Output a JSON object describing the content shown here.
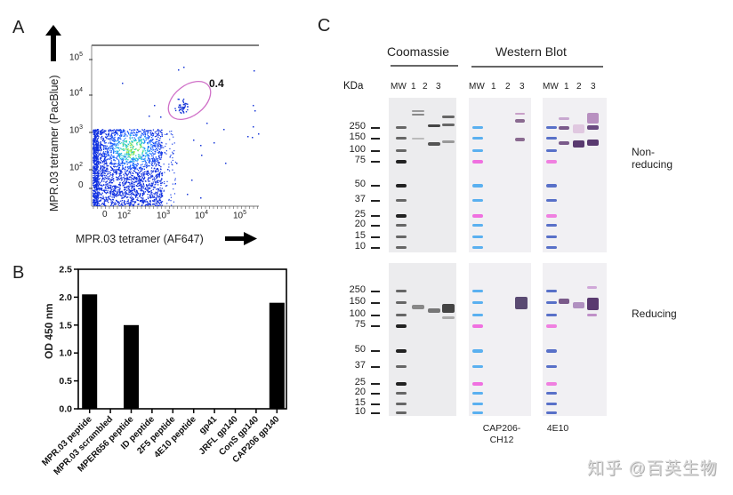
{
  "panels": {
    "a": "A",
    "b": "B",
    "c": "C"
  },
  "chart_data": [
    {
      "type": "scatter",
      "subtype": "flow-cytometry-density",
      "xlabel": "MPR.03 tetramer (AF647)",
      "ylabel": "MPR.03 tetramer (PacBlue)",
      "xscale": "biexponential",
      "yscale": "biexponential",
      "xticks": [
        "0",
        "10^2",
        "10^3",
        "10^4",
        "10^5"
      ],
      "yticks": [
        "0",
        "10^2",
        "10^3",
        "10^4",
        "10^5"
      ],
      "gate": {
        "shape": "ellipse",
        "label": "0.4",
        "color": "#d070c8",
        "x_range_log10": [
          3.2,
          3.9
        ],
        "y_range_log10": [
          3.1,
          3.9
        ]
      },
      "population_center_log10": {
        "x": 2.4,
        "y": 2.6
      }
    },
    {
      "type": "bar",
      "title": "",
      "xlabel": "",
      "ylabel": "OD 450 nm",
      "ylim": [
        0,
        2.5
      ],
      "yticks": [
        "0.0",
        "0.5",
        "1.0",
        "1.5",
        "2.0",
        "2.5"
      ],
      "categories": [
        "MPR.03 peptide",
        "MPR.03 scrambled",
        "MPER656 peptide",
        "ID peptide",
        "2F5 peptide",
        "4E10 peptide",
        "gp41",
        "JRFL gp140",
        "ConS gp140",
        "CAP206 gp140"
      ],
      "values": [
        2.05,
        0,
        1.5,
        0,
        0,
        0,
        0,
        0,
        0,
        1.9
      ],
      "bar_color": "#000000"
    }
  ],
  "panel_c": {
    "headers": {
      "coomassie": "Coomassie",
      "western": "Western Blot"
    },
    "kda_label": "KDa",
    "lane_labels": [
      "MW",
      "1",
      "2",
      "3"
    ],
    "markers": [
      "250",
      "150",
      "100",
      "75",
      "50",
      "37",
      "25",
      "20",
      "15",
      "10"
    ],
    "conditions": {
      "nonreducing": "Non-\nreducing",
      "reducing": "Reducing"
    },
    "antibodies": {
      "wb1": "CAP206-\nCH12",
      "wb2": "4E10"
    }
  },
  "watermark": "知乎 @百英生物"
}
